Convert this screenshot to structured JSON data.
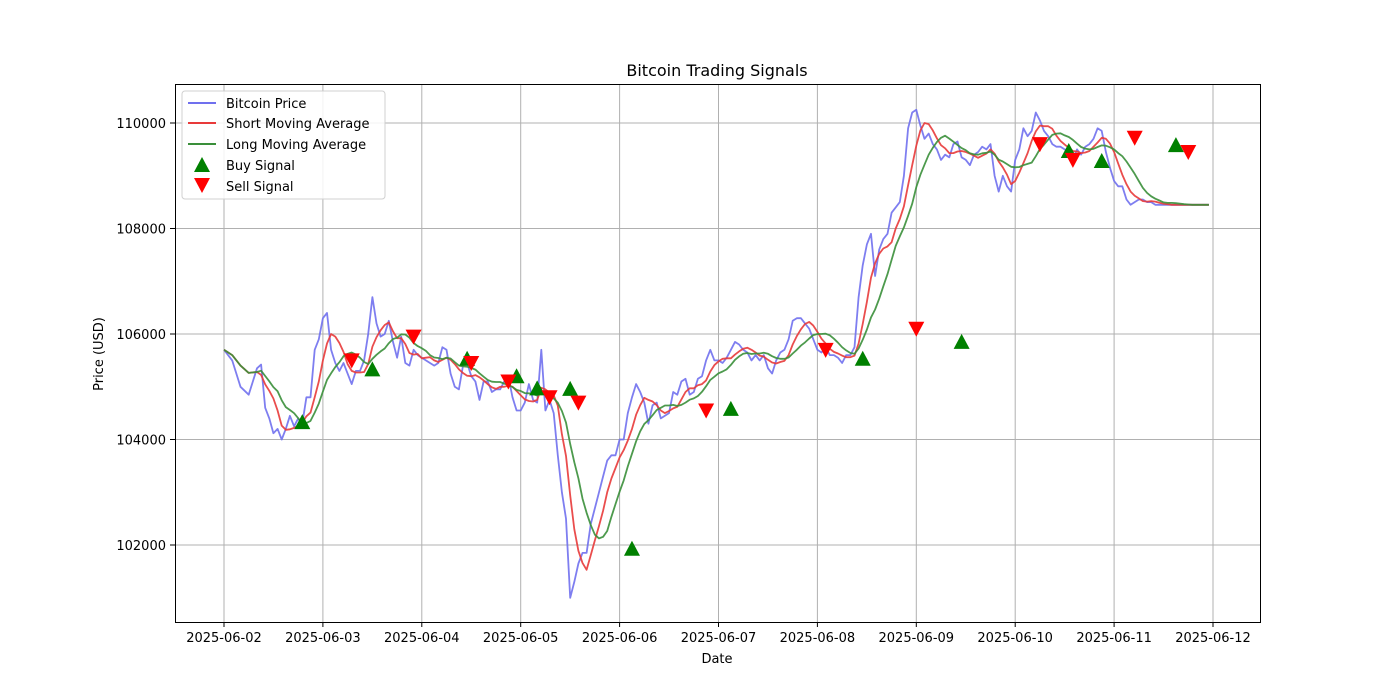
{
  "chart_data": {
    "type": "line",
    "title": "Bitcoin Trading Signals",
    "xlabel": "Date",
    "ylabel": "Price (USD)",
    "xlim": [
      "2025-06-01T12:00",
      "2025-06-12T11:00"
    ],
    "ylim": [
      100500,
      110750
    ],
    "x_ticks": [
      "2025-06-02",
      "2025-06-03",
      "2025-06-04",
      "2025-06-05",
      "2025-06-06",
      "2025-06-07",
      "2025-06-08",
      "2025-06-09",
      "2025-06-10",
      "2025-06-11",
      "2025-06-12"
    ],
    "y_ticks": [
      102000,
      104000,
      106000,
      108000,
      110000
    ],
    "grid": true,
    "legend_position": "upper left",
    "legend": [
      "Bitcoin Price",
      "Short Moving Average",
      "Long Moving Average",
      "Buy Signal",
      "Sell Signal"
    ],
    "colors": {
      "price": "#7070ee",
      "short_ma": "#e83a3a",
      "long_ma": "#3a8f3a",
      "buy": "#008000",
      "sell": "#ff0000",
      "grid": "#b0b0b0"
    },
    "series": [
      {
        "name": "Bitcoin Price",
        "x_hours_from_2025-06-02": [
          0,
          2,
          4,
          6,
          8,
          9,
          10,
          11,
          12,
          13,
          14,
          15,
          16,
          17,
          18,
          19,
          20,
          21,
          22,
          23,
          24,
          25,
          26,
          27,
          28,
          29,
          30,
          31,
          32,
          33,
          34,
          35,
          36,
          37,
          38,
          39,
          40,
          41,
          42,
          43,
          44,
          45,
          46,
          47,
          48,
          49,
          50,
          51,
          52,
          53,
          54,
          55,
          56,
          57,
          58,
          59,
          60,
          61,
          62,
          63,
          64,
          65,
          66,
          67,
          68,
          69,
          70,
          71,
          72,
          73,
          74,
          75,
          76,
          77,
          78,
          79,
          80,
          81,
          82,
          83,
          84,
          85,
          86,
          87,
          88,
          89,
          90,
          91,
          92,
          93,
          94,
          95,
          96,
          97,
          98,
          99,
          100,
          101,
          102,
          103,
          104,
          105,
          106,
          107,
          108,
          109,
          110,
          111,
          112,
          113,
          114,
          115,
          116,
          117,
          118,
          119,
          120,
          121,
          122,
          123,
          124,
          125,
          126,
          127,
          128,
          129,
          130,
          131,
          132,
          133,
          134,
          135,
          136,
          137,
          138,
          139,
          140,
          141,
          142,
          143,
          144,
          145,
          146,
          147,
          148,
          149,
          150,
          151,
          152,
          153,
          154,
          155,
          156,
          157,
          158,
          159,
          160,
          161,
          162,
          163,
          164,
          165,
          166,
          167,
          168,
          169,
          170,
          171,
          172,
          173,
          174,
          175,
          176,
          177,
          178,
          179,
          180,
          181,
          182,
          183,
          184,
          185,
          186,
          187,
          188,
          189,
          190,
          191,
          192,
          193,
          194,
          195,
          196,
          197,
          198,
          199,
          200,
          201,
          202,
          203,
          204,
          205,
          206,
          207,
          208,
          209,
          210,
          211,
          212,
          213,
          214,
          215,
          216,
          217,
          218,
          219,
          220,
          221,
          222,
          223,
          224,
          225,
          226,
          227,
          228,
          229,
          230,
          231,
          232,
          233,
          234,
          235,
          236,
          237,
          238,
          239
        ],
        "values": [
          105700,
          105500,
          105000,
          104850,
          105350,
          105420,
          104600,
          104400,
          104120,
          104200,
          104000,
          104200,
          104450,
          104250,
          104400,
          104300,
          104800,
          104800,
          105700,
          105900,
          106300,
          106400,
          105700,
          105450,
          105300,
          105450,
          105250,
          105050,
          105300,
          105300,
          105500,
          106000,
          106700,
          106200,
          105950,
          106000,
          106250,
          105850,
          105550,
          105950,
          105450,
          105400,
          105700,
          105600,
          105550,
          105500,
          105450,
          105400,
          105450,
          105750,
          105700,
          105250,
          105000,
          104950,
          105400,
          105450,
          105200,
          105100,
          104750,
          105100,
          105100,
          104900,
          104950,
          104950,
          105100,
          105200,
          104800,
          104550,
          104550,
          104700,
          105050,
          104750,
          104700,
          105700,
          104550,
          104750,
          104500,
          103700,
          103000,
          102500,
          101000,
          101300,
          101650,
          101850,
          101850,
          102400,
          102700,
          103000,
          103300,
          103600,
          103700,
          103700,
          104000,
          104000,
          104500,
          104800,
          105050,
          104900,
          104700,
          104300,
          104650,
          104700,
          104400,
          104450,
          104500,
          104900,
          104850,
          105100,
          105150,
          104850,
          104900,
          105150,
          105200,
          105500,
          105700,
          105500,
          105500,
          105450,
          105550,
          105700,
          105850,
          105800,
          105700,
          105650,
          105500,
          105600,
          105500,
          105600,
          105350,
          105250,
          105500,
          105650,
          105700,
          105900,
          106250,
          106300,
          106300,
          106200,
          106100,
          105900,
          105700,
          105650,
          105750,
          105600,
          105600,
          105550,
          105450,
          105600,
          105600,
          105750,
          106700,
          107300,
          107700,
          107900,
          107100,
          107600,
          107800,
          107900,
          108300,
          108400,
          108500,
          109000,
          109900,
          110200,
          110250,
          109950,
          109700,
          109800,
          109600,
          109500,
          109300,
          109400,
          109350,
          109600,
          109650,
          109350,
          109300,
          109200,
          109400,
          109450,
          109550,
          109500,
          109600,
          109000,
          108700,
          109000,
          108800,
          108700,
          109300,
          109500,
          109900,
          109750,
          109850,
          110200,
          110050,
          109850,
          109750,
          109600,
          109550,
          109550,
          109500,
          109450,
          109300,
          109500,
          109400,
          109550,
          109600,
          109700,
          109900,
          109850,
          109450,
          109150,
          108900,
          108800,
          108800,
          108550,
          108450,
          108500,
          108550,
          108550,
          108500,
          108500,
          108450,
          108450,
          108450,
          108450,
          108450,
          108450,
          108450,
          108450,
          108450,
          108450,
          108450,
          108450,
          108450,
          108450,
          108450,
          108450,
          108450
        ]
      },
      {
        "name": "Short Moving Average",
        "window_hours": 5
      },
      {
        "name": "Long Moving Average",
        "window_hours": 10
      }
    ],
    "buy_signals": [
      {
        "hour": 19,
        "price": 104330
      },
      {
        "hour": 36,
        "price": 105330
      },
      {
        "hour": 59,
        "price": 105530
      },
      {
        "hour": 71,
        "price": 105200
      },
      {
        "hour": 76,
        "price": 104970
      },
      {
        "hour": 84,
        "price": 104960
      },
      {
        "hour": 99,
        "price": 101930
      },
      {
        "hour": 123,
        "price": 104580
      },
      {
        "hour": 155,
        "price": 105530
      },
      {
        "hour": 179,
        "price": 105850
      },
      {
        "hour": 205,
        "price": 109470
      },
      {
        "hour": 213,
        "price": 109280
      },
      {
        "hour": 231,
        "price": 109580
      }
    ],
    "sell_signals": [
      {
        "hour": 31,
        "price": 105500
      },
      {
        "hour": 46,
        "price": 105950
      },
      {
        "hour": 60,
        "price": 105450
      },
      {
        "hour": 69,
        "price": 105100
      },
      {
        "hour": 79,
        "price": 104800
      },
      {
        "hour": 86,
        "price": 104700
      },
      {
        "hour": 117,
        "price": 104550
      },
      {
        "hour": 146,
        "price": 105700
      },
      {
        "hour": 168,
        "price": 106100
      },
      {
        "hour": 198,
        "price": 109600
      },
      {
        "hour": 206,
        "price": 109300
      },
      {
        "hour": 221,
        "price": 109720
      },
      {
        "hour": 234,
        "price": 109450
      }
    ]
  }
}
